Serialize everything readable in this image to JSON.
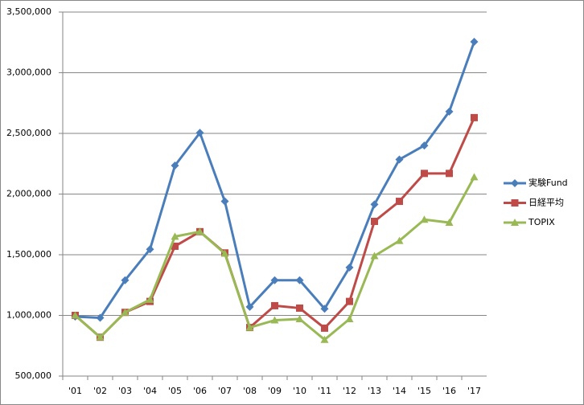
{
  "chart_data": {
    "type": "line",
    "categories": [
      "'01",
      "'02",
      "'03",
      "'04",
      "'05",
      "'06",
      "'07",
      "'08",
      "'09",
      "'10",
      "'11",
      "'12",
      "'13",
      "'14",
      "'15",
      "'16",
      "'17"
    ],
    "series": [
      {
        "name": "実験Fund",
        "color": "#4a7ebb",
        "marker": "diamond",
        "values": [
          990000,
          980000,
          1290000,
          1545000,
          2235000,
          2505000,
          1940000,
          1070000,
          1290000,
          1290000,
          1055000,
          1395000,
          1915000,
          2285000,
          2400000,
          2680000,
          3255000
        ]
      },
      {
        "name": "日経平均",
        "color": "#be4b48",
        "marker": "square",
        "values": [
          1000000,
          820000,
          1025000,
          1115000,
          1570000,
          1690000,
          1515000,
          900000,
          1080000,
          1060000,
          895000,
          1115000,
          1775000,
          1940000,
          2170000,
          2170000,
          2630000
        ]
      },
      {
        "name": "TOPIX",
        "color": "#98b954",
        "marker": "triangle",
        "values": [
          1000000,
          820000,
          1025000,
          1130000,
          1650000,
          1690000,
          1510000,
          900000,
          960000,
          970000,
          800000,
          970000,
          1490000,
          1615000,
          1790000,
          1765000,
          2140000
        ]
      }
    ],
    "ylim": [
      500000,
      3500000
    ],
    "yticks": [
      {
        "value": 500000,
        "label": "500,000"
      },
      {
        "value": 1000000,
        "label": "1,000,000"
      },
      {
        "value": 1500000,
        "label": "1,500,000"
      },
      {
        "value": 2000000,
        "label": "2,000,000"
      },
      {
        "value": 2500000,
        "label": "2,500,000"
      },
      {
        "value": 3000000,
        "label": "3,000,000"
      },
      {
        "value": 3500000,
        "label": "3,500,000"
      }
    ],
    "grid": true,
    "legend": "right"
  }
}
